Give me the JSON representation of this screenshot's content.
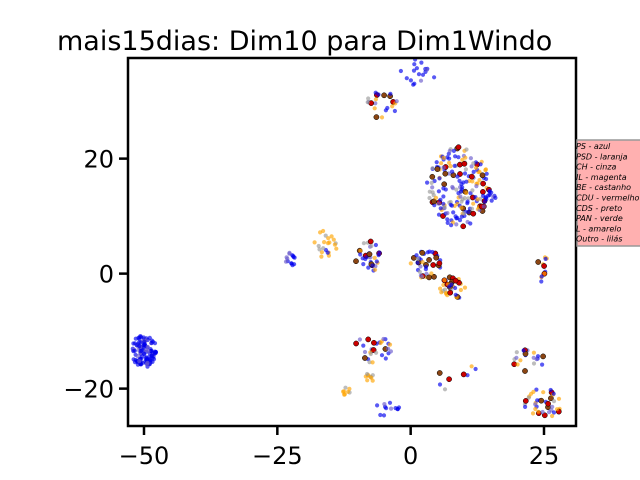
{
  "chart_data": {
    "type": "scatter",
    "title": "mais15dias: Dim10 para Dim1Windo",
    "xlabel": "",
    "ylabel": "",
    "xlim": [
      -53,
      31
    ],
    "ylim": [
      -26.5,
      37.5
    ],
    "x_ticks": [
      -50,
      -25,
      0,
      25
    ],
    "y_ticks": [
      -20,
      0,
      20
    ],
    "x_tick_labels": [
      "−50",
      "−25",
      "0",
      "25"
    ],
    "y_tick_labels": [
      "−20",
      "0",
      "20"
    ],
    "grid": false,
    "legend_position": "right",
    "legend_entries": [
      "PS - azul",
      "PSD - laranja",
      "CH - cinza",
      "IL - magenta",
      "BE - castanho",
      "CDU - vermelho",
      "CDS - preto",
      "PAN - verde",
      "L - amarelo",
      "Outro - lilás"
    ],
    "colors": {
      "azul": "#0000ee",
      "laranja": "#ffa500",
      "cinza": "#9a9a9a",
      "castanho": "#8b4513",
      "vermelho": "#cc0000",
      "lilas": "#6a5acd",
      "legend_bg": "#ffb0b0"
    },
    "clusters": [
      {
        "cx": -50,
        "cy": -13.5,
        "rx": 2.5,
        "ry": 2.8,
        "n": 120,
        "mix": "blue"
      },
      {
        "cx": 1.5,
        "cy": 35,
        "rx": 3.5,
        "ry": 2.5,
        "n": 18,
        "mix": "blue"
      },
      {
        "cx": -5.5,
        "cy": 29.5,
        "rx": 3,
        "ry": 2.5,
        "n": 22,
        "mix": "mixed"
      },
      {
        "cx": 9,
        "cy": 15,
        "rx": 6,
        "ry": 7,
        "n": 190,
        "mix": "mixed"
      },
      {
        "cx": 15,
        "cy": 13.5,
        "rx": 1,
        "ry": 1,
        "n": 12,
        "mix": "blue"
      },
      {
        "cx": -22.5,
        "cy": 2.5,
        "rx": 1,
        "ry": 1.2,
        "n": 14,
        "mix": "blue"
      },
      {
        "cx": -16,
        "cy": 5,
        "rx": 2.5,
        "ry": 2.5,
        "n": 22,
        "mix": "orange"
      },
      {
        "cx": -8,
        "cy": 3,
        "rx": 2.5,
        "ry": 2.8,
        "n": 35,
        "mix": "mixed"
      },
      {
        "cx": 3,
        "cy": 1.5,
        "rx": 3,
        "ry": 2.5,
        "n": 40,
        "mix": "mixed"
      },
      {
        "cx": 8,
        "cy": -2.5,
        "rx": 2.5,
        "ry": 2,
        "n": 35,
        "mix": "mixed"
      },
      {
        "cx": 24.5,
        "cy": 1,
        "rx": 1.5,
        "ry": 2.5,
        "n": 12,
        "mix": "mixed"
      },
      {
        "cx": -7,
        "cy": -13,
        "rx": 3.5,
        "ry": 2.5,
        "n": 30,
        "mix": "mixed"
      },
      {
        "cx": -7.5,
        "cy": -18,
        "rx": 1,
        "ry": 1,
        "n": 10,
        "mix": "orange"
      },
      {
        "cx": -12,
        "cy": -20.5,
        "rx": 0.8,
        "ry": 0.7,
        "n": 8,
        "mix": "orange"
      },
      {
        "cx": -4.5,
        "cy": -23,
        "rx": 3,
        "ry": 2,
        "n": 12,
        "mix": "blue"
      },
      {
        "cx": 22,
        "cy": -15,
        "rx": 3,
        "ry": 2,
        "n": 20,
        "mix": "mixed"
      },
      {
        "cx": 25,
        "cy": -22,
        "rx": 4,
        "ry": 3,
        "n": 40,
        "mix": "mixed"
      },
      {
        "cx": 9,
        "cy": -18,
        "rx": 4,
        "ry": 3,
        "n": 8,
        "mix": "mixed"
      }
    ]
  }
}
